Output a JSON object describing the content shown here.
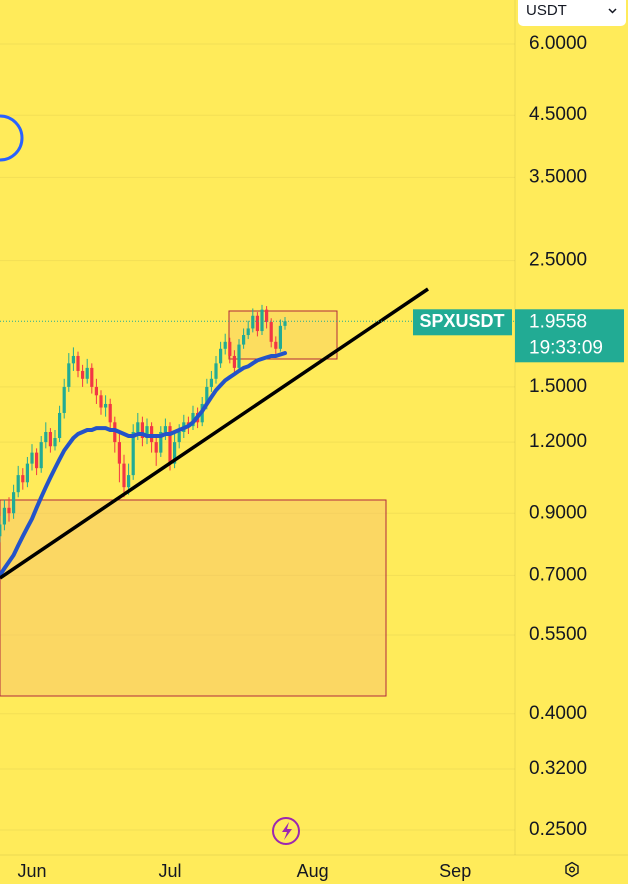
{
  "chart_data": {
    "type": "candlestick",
    "currency": "USDT",
    "symbol": "SPXUSDT",
    "last_price": 1.9558,
    "countdown": "19:33:09",
    "log_scale": true,
    "grid": true,
    "up_color": "#22ab94",
    "down_color": "#f23645",
    "ma_color": "#2453c8",
    "ylim": [
      0.226,
      7.17
    ],
    "yticks": [
      {
        "value": 0.25,
        "label": "0.2500"
      },
      {
        "value": 0.32,
        "label": "0.3200"
      },
      {
        "value": 0.4,
        "label": "0.4000"
      },
      {
        "value": 0.55,
        "label": "0.5500"
      },
      {
        "value": 0.7,
        "label": "0.7000"
      },
      {
        "value": 0.9,
        "label": "0.9000"
      },
      {
        "value": 1.2,
        "label": "1.2000"
      },
      {
        "value": 1.5,
        "label": "1.5000"
      },
      {
        "value": 2.5,
        "label": "2.5000"
      },
      {
        "value": 3.5,
        "label": "3.5000"
      },
      {
        "value": 4.5,
        "label": "4.5000"
      },
      {
        "value": 6,
        "label": "6.0000"
      }
    ],
    "categories": [
      null,
      null,
      null,
      null,
      null,
      null,
      null,
      "Jun",
      null,
      null,
      null,
      null,
      null,
      null,
      null,
      null,
      null,
      null,
      null,
      null,
      null,
      null,
      null,
      null,
      null,
      null,
      null,
      null,
      null,
      null,
      null,
      null,
      null,
      null,
      null,
      null,
      null,
      "Jul",
      null,
      null,
      null,
      null,
      null,
      null,
      null,
      null,
      null,
      null,
      null,
      null,
      null,
      null,
      null,
      null,
      null,
      null,
      null,
      null,
      null,
      null,
      null,
      null,
      null,
      null,
      null,
      null,
      null,
      null,
      "Aug",
      null,
      null,
      null,
      null,
      null,
      null,
      null,
      null,
      null,
      null,
      null,
      null,
      null,
      null,
      null,
      null,
      null,
      null,
      null,
      null,
      null,
      null,
      null,
      null,
      null,
      null,
      null,
      null,
      null,
      null,
      "Sep"
    ],
    "open": [
      0.82,
      0.86,
      0.92,
      0.9,
      0.98,
      1.05,
      1.02,
      1.1,
      1.15,
      1.08,
      1.2,
      1.25,
      1.18,
      1.22,
      1.35,
      1.5,
      1.65,
      1.7,
      1.6,
      1.55,
      1.62,
      1.5,
      1.45,
      1.38,
      1.4,
      1.3,
      1.2,
      1.1,
      1.0,
      1.05,
      1.25,
      1.3,
      1.22,
      1.28,
      1.2,
      1.15,
      1.25,
      1.28,
      1.1,
      1.2,
      1.25,
      1.3,
      1.28,
      1.35,
      1.3,
      1.4,
      1.5,
      1.55,
      1.65,
      1.75,
      1.8,
      1.7,
      1.62,
      1.78,
      1.85,
      1.9,
      2.0,
      1.88,
      2.05,
      1.95,
      1.8,
      1.75,
      1.92,
      null,
      null,
      null,
      null,
      null,
      null,
      null,
      null,
      null,
      null,
      null,
      null,
      null,
      null,
      null,
      null,
      null,
      null,
      null,
      null,
      null,
      null,
      null,
      null,
      null,
      null,
      null,
      null,
      null,
      null,
      null,
      null,
      null,
      null,
      null,
      null,
      null
    ],
    "high": [
      0.89,
      0.95,
      0.96,
      1.01,
      1.09,
      1.08,
      1.13,
      1.19,
      1.17,
      1.23,
      1.3,
      1.27,
      1.26,
      1.39,
      1.55,
      1.72,
      1.76,
      1.73,
      1.64,
      1.68,
      1.65,
      1.55,
      1.48,
      1.45,
      1.43,
      1.33,
      1.24,
      1.14,
      1.1,
      1.29,
      1.35,
      1.33,
      1.32,
      1.3,
      1.23,
      1.28,
      1.32,
      1.3,
      1.24,
      1.29,
      1.34,
      1.33,
      1.39,
      1.38,
      1.44,
      1.55,
      1.6,
      1.7,
      1.8,
      1.86,
      1.83,
      1.74,
      1.82,
      1.9,
      1.96,
      2.06,
      2.03,
      2.09,
      2.08,
      1.98,
      1.84,
      1.97,
      1.99,
      null,
      null,
      null,
      null,
      null,
      null,
      null,
      null,
      null,
      null,
      null,
      null,
      null,
      null,
      null,
      null,
      null,
      null,
      null,
      null,
      null,
      null,
      null,
      null,
      null,
      null,
      null,
      null,
      null,
      null,
      null,
      null,
      null,
      null,
      null,
      null,
      null
    ],
    "low": [
      0.8,
      0.84,
      0.87,
      0.88,
      0.96,
      0.99,
      1.0,
      1.07,
      1.05,
      1.06,
      1.17,
      1.15,
      1.16,
      1.2,
      1.32,
      1.47,
      1.6,
      1.56,
      1.5,
      1.52,
      1.46,
      1.4,
      1.34,
      1.33,
      1.25,
      1.15,
      1.02,
      0.96,
      0.97,
      1.03,
      1.21,
      1.18,
      1.19,
      1.15,
      1.09,
      1.13,
      1.21,
      1.07,
      1.08,
      1.17,
      1.22,
      1.24,
      1.26,
      1.27,
      1.28,
      1.37,
      1.47,
      1.52,
      1.62,
      1.71,
      1.65,
      1.58,
      1.6,
      1.75,
      1.82,
      1.87,
      1.84,
      1.85,
      1.9,
      1.76,
      1.7,
      1.73,
      1.89,
      null,
      null,
      null,
      null,
      null,
      null,
      null,
      null,
      null,
      null,
      null,
      null,
      null,
      null,
      null,
      null,
      null,
      null,
      null,
      null,
      null,
      null,
      null,
      null,
      null,
      null,
      null,
      null,
      null,
      null,
      null,
      null,
      null,
      null,
      null,
      null,
      null
    ],
    "close": [
      0.86,
      0.92,
      0.9,
      0.98,
      1.05,
      1.02,
      1.1,
      1.15,
      1.08,
      1.2,
      1.25,
      1.18,
      1.22,
      1.35,
      1.5,
      1.65,
      1.7,
      1.6,
      1.55,
      1.62,
      1.5,
      1.45,
      1.38,
      1.4,
      1.3,
      1.2,
      1.1,
      1.0,
      1.05,
      1.25,
      1.3,
      1.22,
      1.28,
      1.2,
      1.15,
      1.25,
      1.28,
      1.1,
      1.2,
      1.25,
      1.3,
      1.28,
      1.35,
      1.3,
      1.4,
      1.5,
      1.55,
      1.65,
      1.75,
      1.8,
      1.7,
      1.62,
      1.78,
      1.85,
      1.9,
      2.0,
      1.88,
      2.05,
      1.95,
      1.8,
      1.75,
      1.92,
      1.9558,
      null,
      null,
      null,
      null,
      null,
      null,
      null,
      null,
      null,
      null,
      null,
      null,
      null,
      null,
      null,
      null,
      null,
      null,
      null,
      null,
      null,
      null,
      null,
      null,
      null,
      null,
      null,
      null,
      null,
      null,
      null,
      null,
      null,
      null,
      null,
      null,
      null
    ],
    "ma_values": [
      0.7,
      0.72,
      0.74,
      0.76,
      0.79,
      0.82,
      0.85,
      0.88,
      0.92,
      0.96,
      1.0,
      1.04,
      1.08,
      1.12,
      1.16,
      1.19,
      1.22,
      1.24,
      1.25,
      1.26,
      1.26,
      1.27,
      1.27,
      1.27,
      1.26,
      1.26,
      1.25,
      1.24,
      1.23,
      1.23,
      1.24,
      1.24,
      1.23,
      1.23,
      1.23,
      1.23,
      1.24,
      1.24,
      1.25,
      1.26,
      1.27,
      1.28,
      1.3,
      1.33,
      1.36,
      1.4,
      1.44,
      1.48,
      1.51,
      1.54,
      1.56,
      1.58,
      1.6,
      1.62,
      1.63,
      1.65,
      1.67,
      1.68,
      1.69,
      1.7,
      1.7,
      1.71,
      1.72,
      null,
      null,
      null,
      null,
      null,
      null,
      null,
      null,
      null,
      null,
      null,
      null,
      null,
      null,
      null,
      null,
      null,
      null,
      null,
      null,
      null,
      null,
      null,
      null,
      null,
      null,
      null,
      null,
      null,
      null,
      null,
      null,
      null,
      null,
      null,
      null,
      null
    ]
  }
}
